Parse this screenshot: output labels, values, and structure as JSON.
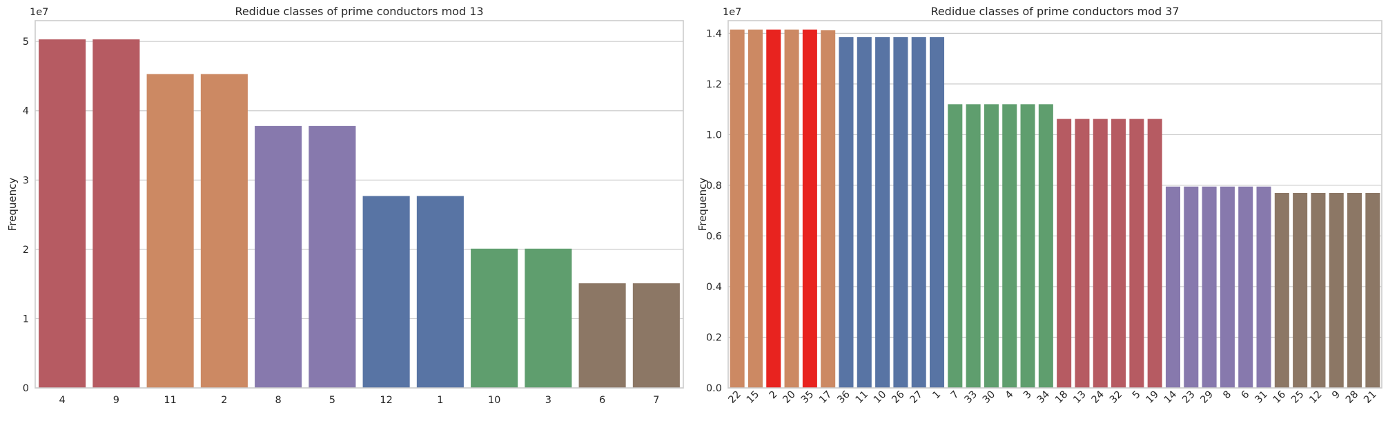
{
  "chart_data": [
    {
      "type": "bar",
      "title": "Redidue classes of prime conductors mod 13",
      "xlabel": "",
      "ylabel": "Frequency",
      "scale_label": "1e7",
      "ylim": [
        0,
        53000000
      ],
      "yticks": [
        0,
        10000000,
        20000000,
        30000000,
        40000000,
        50000000
      ],
      "ytick_labels": [
        "0",
        "1",
        "2",
        "3",
        "4",
        "5"
      ],
      "grid": true,
      "x_tick_rotation": 0,
      "categories": [
        "4",
        "9",
        "11",
        "2",
        "8",
        "5",
        "12",
        "1",
        "10",
        "3",
        "6",
        "7"
      ],
      "values": [
        50300000,
        50300000,
        45300000,
        45300000,
        37800000,
        37800000,
        27700000,
        27700000,
        20100000,
        20100000,
        15100000,
        15100000
      ],
      "colors": [
        "#b65b62",
        "#b65b62",
        "#cc8963",
        "#cc8963",
        "#8779ad",
        "#8779ad",
        "#5874a4",
        "#5874a4",
        "#5f9e6e",
        "#5f9e6e",
        "#8c7765",
        "#8c7765"
      ]
    },
    {
      "type": "bar",
      "title": "Redidue classes of prime conductors mod 37",
      "xlabel": "",
      "ylabel": "Frequency",
      "scale_label": "1e7",
      "ylim": [
        0,
        14500000
      ],
      "yticks": [
        0,
        2000000,
        4000000,
        6000000,
        8000000,
        10000000,
        12000000,
        14000000
      ],
      "ytick_labels": [
        "0.0",
        "0.2",
        "0.4",
        "0.6",
        "0.8",
        "1.0",
        "1.2",
        "1.4"
      ],
      "grid": true,
      "x_tick_rotation": -45,
      "categories": [
        "22",
        "15",
        "2",
        "20",
        "35",
        "17",
        "36",
        "11",
        "10",
        "26",
        "27",
        "1",
        "7",
        "33",
        "30",
        "4",
        "3",
        "34",
        "18",
        "13",
        "24",
        "32",
        "5",
        "19",
        "14",
        "23",
        "29",
        "8",
        "6",
        "31",
        "16",
        "25",
        "12",
        "9",
        "28",
        "21"
      ],
      "values": [
        14150000,
        14150000,
        14150000,
        14150000,
        14150000,
        14120000,
        13850000,
        13850000,
        13850000,
        13850000,
        13850000,
        13850000,
        11200000,
        11200000,
        11200000,
        11200000,
        11200000,
        11200000,
        10620000,
        10620000,
        10620000,
        10620000,
        10620000,
        10620000,
        7950000,
        7950000,
        7950000,
        7950000,
        7950000,
        7950000,
        7700000,
        7700000,
        7700000,
        7700000,
        7700000,
        7700000
      ],
      "colors": [
        "#cc8963",
        "#cc8963",
        "#e8231f",
        "#cc8963",
        "#e8231f",
        "#cc8963",
        "#5874a4",
        "#5874a4",
        "#5874a4",
        "#5874a4",
        "#5874a4",
        "#5874a4",
        "#5f9e6e",
        "#5f9e6e",
        "#5f9e6e",
        "#5f9e6e",
        "#5f9e6e",
        "#5f9e6e",
        "#b65b62",
        "#b65b62",
        "#b65b62",
        "#b65b62",
        "#b65b62",
        "#b65b62",
        "#8779ad",
        "#8779ad",
        "#8779ad",
        "#8779ad",
        "#8779ad",
        "#8779ad",
        "#8c7765",
        "#8c7765",
        "#8c7765",
        "#8c7765",
        "#8c7765",
        "#8c7765"
      ]
    }
  ]
}
